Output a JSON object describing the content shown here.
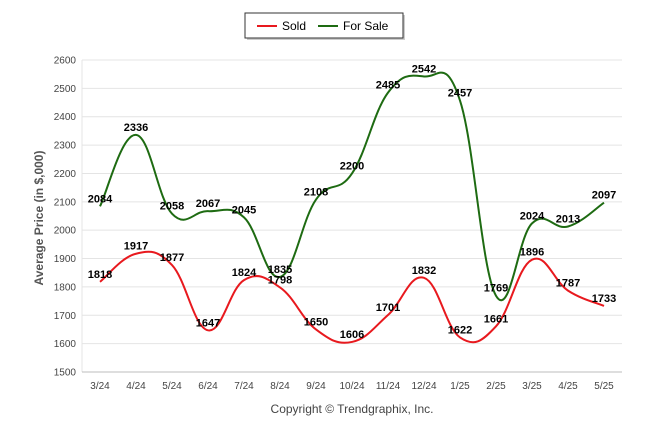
{
  "chart_data": {
    "type": "line",
    "categories": [
      "3/24",
      "4/24",
      "5/24",
      "6/24",
      "7/24",
      "8/24",
      "9/24",
      "10/24",
      "11/24",
      "12/24",
      "1/25",
      "2/25",
      "3/25",
      "4/25",
      "5/25"
    ],
    "series": [
      {
        "name": "Sold",
        "color": "#e8191e",
        "values": [
          1818,
          1917,
          1877,
          1647,
          1824,
          1798,
          1650,
          1606,
          1701,
          1832,
          1622,
          1661,
          1896,
          1787,
          1733
        ]
      },
      {
        "name": "For Sale",
        "color": "#1e6b12",
        "values": [
          2084,
          2336,
          2058,
          2067,
          2045,
          1835,
          2108,
          2200,
          2485,
          2542,
          2457,
          1769,
          2024,
          2013,
          2097
        ]
      }
    ],
    "ylabel": "Average Price (in $,000)",
    "ylim": [
      1500,
      2600
    ],
    "yticks": [
      1500,
      1600,
      1700,
      1800,
      1900,
      2000,
      2100,
      2200,
      2300,
      2400,
      2500,
      2600
    ],
    "grid": true,
    "legend": "top-center"
  },
  "credit": "Copyright © Trendgraphix, Inc."
}
